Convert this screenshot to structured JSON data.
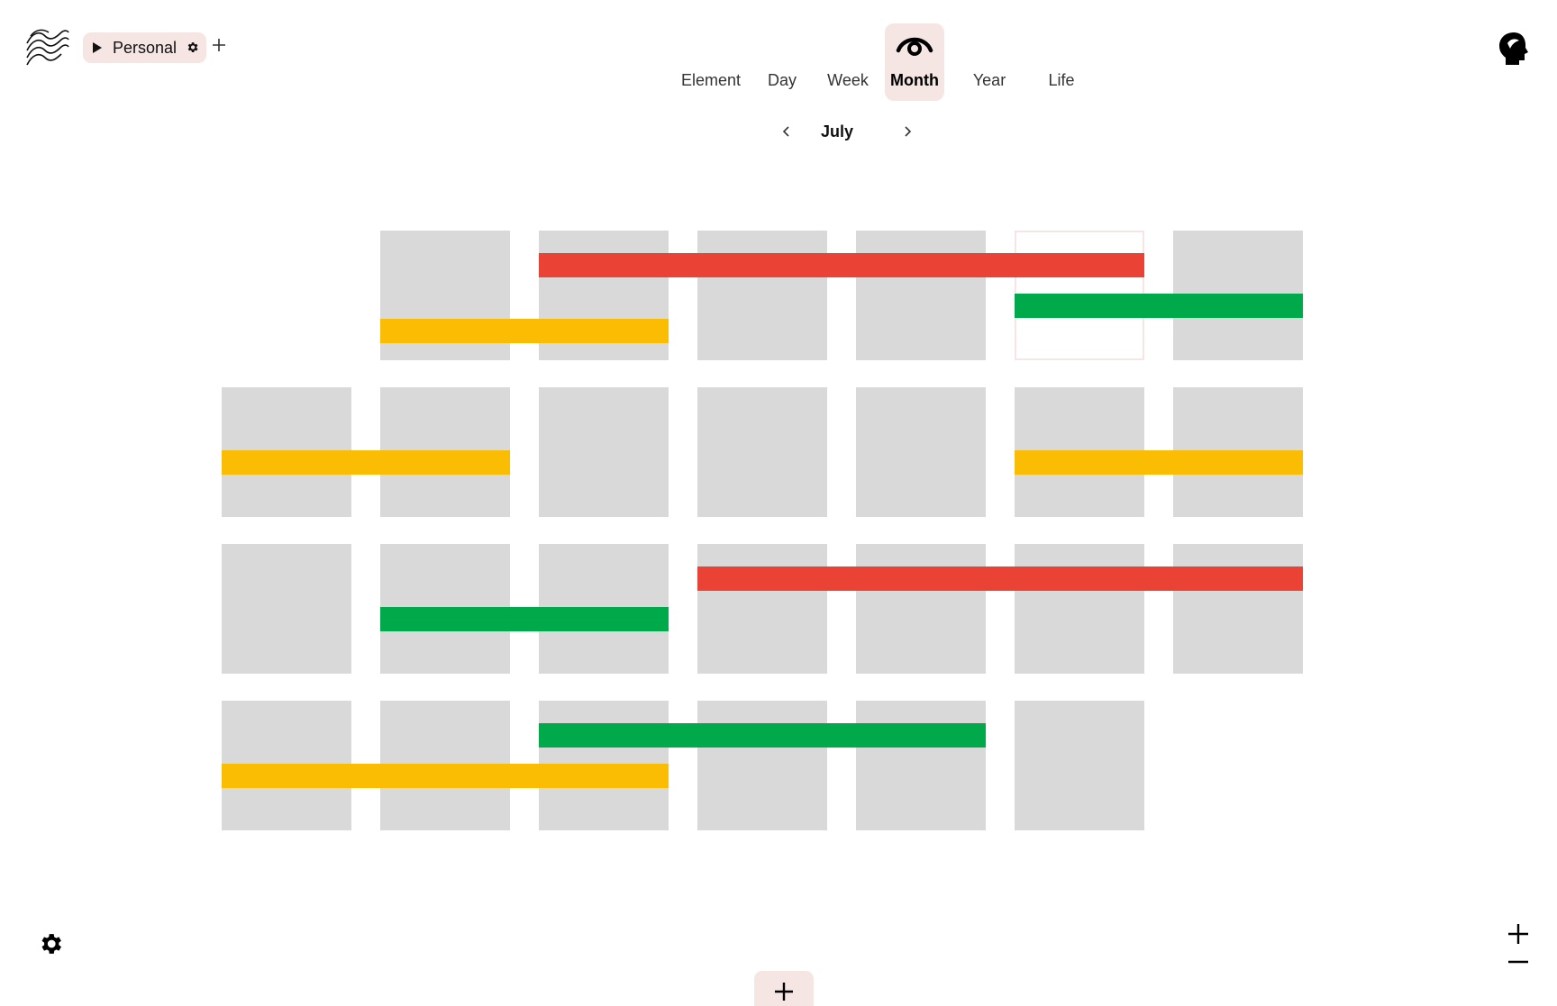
{
  "workspace": {
    "name": "Personal"
  },
  "views": [
    {
      "label": "Element",
      "active": false
    },
    {
      "label": "Day",
      "active": false
    },
    {
      "label": "Week",
      "active": false
    },
    {
      "label": "Month",
      "active": true
    },
    {
      "label": "Year",
      "active": false
    },
    {
      "label": "Life",
      "active": false
    }
  ],
  "month": {
    "label": "July"
  },
  "calendar": {
    "weeks": [
      [
        false,
        true,
        true,
        true,
        true,
        true,
        true
      ],
      [
        true,
        true,
        true,
        true,
        true,
        true,
        true
      ],
      [
        true,
        true,
        true,
        true,
        true,
        true,
        true
      ],
      [
        true,
        true,
        true,
        true,
        true,
        true,
        false
      ]
    ],
    "today": {
      "week": 0,
      "day": 5
    },
    "events": [
      {
        "color": "#ea4335",
        "week": 0,
        "start_day": 2,
        "end_day": 5,
        "lane": 0
      },
      {
        "color": "#00aa4a",
        "week": 0,
        "start_day": 5,
        "end_day": 6,
        "lane": 1
      },
      {
        "color": "#fbbc04",
        "week": 0,
        "start_day": 1,
        "end_day": 2,
        "lane": 2
      },
      {
        "color": "#fbbc04",
        "week": 1,
        "start_day": 0,
        "end_day": 1,
        "lane": 1
      },
      {
        "color": "#fbbc04",
        "week": 1,
        "start_day": 5,
        "end_day": 6,
        "lane": 1
      },
      {
        "color": "#ea4335",
        "week": 2,
        "start_day": 3,
        "end_day": 6,
        "lane": 0
      },
      {
        "color": "#00aa4a",
        "week": 2,
        "start_day": 1,
        "end_day": 2,
        "lane": 1
      },
      {
        "color": "#00aa4a",
        "week": 3,
        "start_day": 2,
        "end_day": 4,
        "lane": 0
      },
      {
        "color": "#fbbc04",
        "week": 3,
        "start_day": 0,
        "end_day": 2,
        "lane": 1
      }
    ]
  },
  "colors": {
    "accent_bg": "#f5e6e4",
    "cell": "#d9d9d9",
    "red": "#ea4335",
    "green": "#00aa4a",
    "yellow": "#fbbc04"
  }
}
